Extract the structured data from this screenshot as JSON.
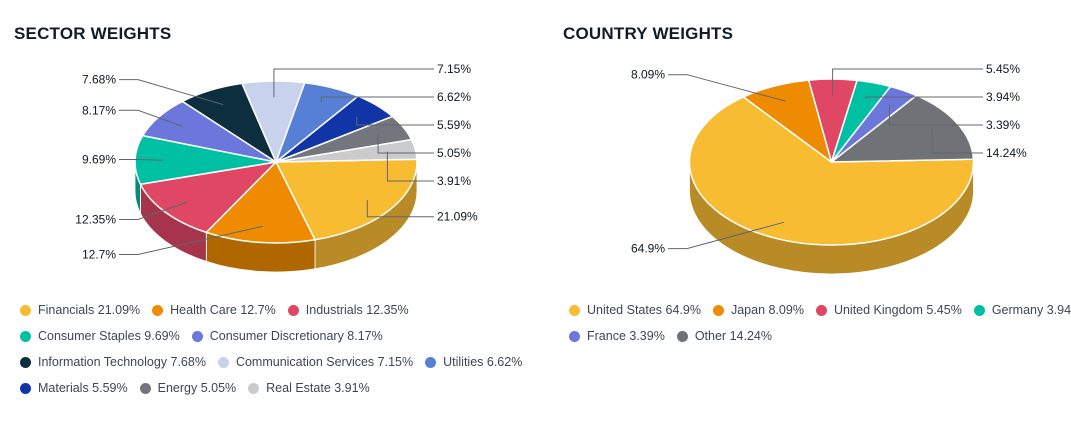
{
  "chart_data": [
    {
      "type": "pie",
      "style": "3d",
      "title": "SECTOR WEIGHTS",
      "legend_position": "bottom",
      "slices": [
        {
          "name": "Financials",
          "value": 21.09,
          "label": "21.09%",
          "color": "#F8BC33",
          "callout_side": "right"
        },
        {
          "name": "Health Care",
          "value": 12.7,
          "label": "12.7%",
          "color": "#EE8B00",
          "callout_side": "left"
        },
        {
          "name": "Industrials",
          "value": 12.35,
          "label": "12.35%",
          "color": "#E04765",
          "callout_side": "left"
        },
        {
          "name": "Consumer Staples",
          "value": 9.69,
          "label": "9.69%",
          "color": "#00C0A4",
          "callout_side": "left"
        },
        {
          "name": "Consumer Discretionary",
          "value": 8.17,
          "label": "8.17%",
          "color": "#6B77DB",
          "callout_side": "left"
        },
        {
          "name": "Information Technology",
          "value": 7.68,
          "label": "7.68%",
          "color": "#0D2E3F",
          "callout_side": "left"
        },
        {
          "name": "Communication Services",
          "value": 7.15,
          "label": "7.15%",
          "color": "#C8D2EC",
          "callout_side": "right"
        },
        {
          "name": "Utilities",
          "value": 6.62,
          "label": "6.62%",
          "color": "#5580D6",
          "callout_side": "right"
        },
        {
          "name": "Materials",
          "value": 5.59,
          "label": "5.59%",
          "color": "#1134A6",
          "callout_side": "right"
        },
        {
          "name": "Energy",
          "value": 5.05,
          "label": "5.05%",
          "color": "#73767C",
          "callout_side": "right"
        },
        {
          "name": "Real Estate",
          "value": 3.91,
          "label": "3.91%",
          "color": "#C9CBCD",
          "callout_side": "right"
        }
      ]
    },
    {
      "type": "pie",
      "style": "3d",
      "title": "COUNTRY WEIGHTS",
      "legend_position": "bottom",
      "slices": [
        {
          "name": "United States",
          "value": 64.9,
          "label": "64.9%",
          "color": "#F8BC33",
          "callout_side": "left"
        },
        {
          "name": "Japan",
          "value": 8.09,
          "label": "8.09%",
          "color": "#EE8B00",
          "callout_side": "left"
        },
        {
          "name": "United Kingdom",
          "value": 5.45,
          "label": "5.45%",
          "color": "#E04765",
          "callout_side": "right"
        },
        {
          "name": "Germany",
          "value": 3.94,
          "label": "3.94%",
          "color": "#00C0A4",
          "callout_side": "right"
        },
        {
          "name": "France",
          "value": 3.39,
          "label": "3.39%",
          "color": "#6B77DB",
          "callout_side": "right"
        },
        {
          "name": "Other",
          "value": 14.24,
          "label": "14.24%",
          "color": "#6F7276",
          "callout_side": "right"
        }
      ]
    }
  ]
}
